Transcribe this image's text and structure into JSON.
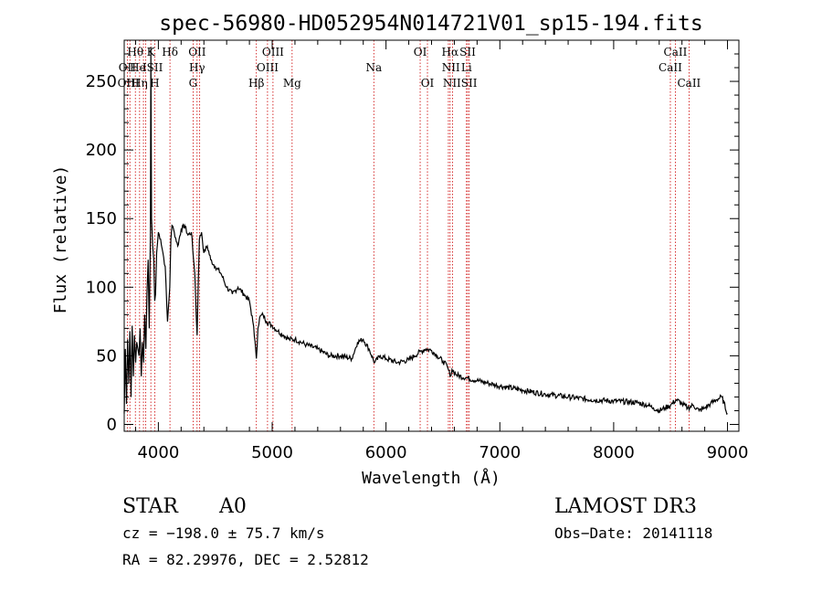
{
  "chart_data": {
    "type": "line",
    "title": "spec-56980-HD052954N014721V01_sp15-194.fits",
    "xlabel": "Wavelength (Å)",
    "ylabel": "Flux (relative)",
    "xlim": [
      3700,
      9100
    ],
    "ylim": [
      -5,
      280
    ],
    "xticks": [
      4000,
      5000,
      6000,
      7000,
      8000,
      9000
    ],
    "yticks": [
      0,
      50,
      100,
      150,
      200,
      250
    ],
    "series": [
      {
        "name": "flux",
        "x": [
          3700,
          3710,
          3720,
          3730,
          3740,
          3750,
          3760,
          3770,
          3780,
          3790,
          3800,
          3810,
          3820,
          3830,
          3840,
          3850,
          3860,
          3870,
          3880,
          3890,
          3900,
          3910,
          3920,
          3930,
          3934,
          3940,
          3950,
          3960,
          3968,
          3975,
          3985,
          4000,
          4020,
          4040,
          4060,
          4080,
          4100,
          4110,
          4120,
          4140,
          4170,
          4200,
          4230,
          4260,
          4290,
          4320,
          4340,
          4350,
          4360,
          4380,
          4400,
          4430,
          4460,
          4500,
          4550,
          4600,
          4650,
          4700,
          4750,
          4800,
          4830,
          4850,
          4861,
          4875,
          4890,
          4920,
          4950,
          5000,
          5050,
          5100,
          5150,
          5200,
          5250,
          5300,
          5400,
          5500,
          5600,
          5700,
          5750,
          5800,
          5850,
          5900,
          5950,
          6000,
          6100,
          6200,
          6250,
          6300,
          6350,
          6400,
          6450,
          6500,
          6540,
          6563,
          6580,
          6620,
          6700,
          6800,
          6900,
          7000,
          7200,
          7400,
          7600,
          7800,
          8000,
          8200,
          8300,
          8350,
          8400,
          8450,
          8500,
          8550,
          8600,
          8650,
          8700,
          8750,
          8800,
          8850,
          8900,
          8950,
          9000
        ],
        "values": [
          8,
          55,
          15,
          62,
          30,
          68,
          20,
          72,
          35,
          65,
          45,
          60,
          55,
          50,
          70,
          35,
          60,
          45,
          80,
          55,
          95,
          120,
          70,
          140,
          275,
          150,
          130,
          120,
          90,
          95,
          125,
          140,
          135,
          125,
          115,
          75,
          100,
          135,
          145,
          140,
          130,
          142,
          145,
          138,
          140,
          110,
          65,
          100,
          135,
          140,
          125,
          130,
          120,
          115,
          110,
          100,
          95,
          100,
          95,
          90,
          75,
          60,
          48,
          70,
          78,
          80,
          75,
          72,
          68,
          65,
          62,
          62,
          60,
          58,
          55,
          50,
          50,
          48,
          60,
          62,
          55,
          45,
          50,
          48,
          45,
          47,
          50,
          53,
          55,
          54,
          50,
          46,
          42,
          35,
          40,
          36,
          34,
          32,
          30,
          28,
          25,
          22,
          20,
          18,
          17,
          16,
          14,
          12,
          10,
          12,
          14,
          18,
          15,
          12,
          14,
          10,
          12,
          15,
          18,
          20,
          8
        ]
      }
    ],
    "lines": [
      {
        "name": "Hθ",
        "wl": 3798,
        "row": 0,
        "anchor": "middle"
      },
      {
        "name": "K",
        "wl": 3934,
        "row": 0,
        "anchor": "middle"
      },
      {
        "name": "Hδ",
        "wl": 4102,
        "row": 0,
        "anchor": "middle"
      },
      {
        "name": "OII",
        "wl": 4341,
        "row": 0,
        "anchor": "middle"
      },
      {
        "name": "OIII",
        "wl": 5007,
        "row": 0,
        "anchor": "middle"
      },
      {
        "name": "OI",
        "wl": 6300,
        "row": 0,
        "anchor": "middle"
      },
      {
        "name": "Hα",
        "wl": 6563,
        "row": 0,
        "anchor": "middle"
      },
      {
        "name": "SII",
        "wl": 6717,
        "row": 0,
        "anchor": "middle"
      },
      {
        "name": "CaII",
        "wl": 8542,
        "row": 0,
        "anchor": "middle"
      },
      {
        "name": "OII",
        "wl": 3727,
        "row": 1,
        "anchor": "middle"
      },
      {
        "name": "He",
        "wl": 3820,
        "row": 1,
        "anchor": "middle"
      },
      {
        "name": "ISII",
        "wl": 3950,
        "row": 1,
        "anchor": "middle"
      },
      {
        "name": "Hγ",
        "wl": 4340,
        "row": 1,
        "anchor": "middle"
      },
      {
        "name": "OIII",
        "wl": 4959,
        "row": 1,
        "anchor": "middle"
      },
      {
        "name": "Na",
        "wl": 5893,
        "row": 1,
        "anchor": "middle"
      },
      {
        "name": "NII",
        "wl": 6570,
        "row": 1,
        "anchor": "middle"
      },
      {
        "name": "Li",
        "wl": 6707,
        "row": 1,
        "anchor": "middle"
      },
      {
        "name": "CaII",
        "wl": 8498,
        "row": 1,
        "anchor": "middle"
      },
      {
        "name": "OIII",
        "wl": 3737,
        "row": 2,
        "anchor": "middle"
      },
      {
        "name": "Hη",
        "wl": 3835,
        "row": 2,
        "anchor": "middle"
      },
      {
        "name": "H",
        "wl": 3968,
        "row": 2,
        "anchor": "middle"
      },
      {
        "name": "G",
        "wl": 4305,
        "row": 2,
        "anchor": "middle"
      },
      {
        "name": "Hβ",
        "wl": 4861,
        "row": 2,
        "anchor": "middle"
      },
      {
        "name": "Mg",
        "wl": 5175,
        "row": 2,
        "anchor": "middle"
      },
      {
        "name": "OI",
        "wl": 6364,
        "row": 2,
        "anchor": "middle"
      },
      {
        "name": "NIISII",
        "wl": 6650,
        "row": 2,
        "anchor": "middle"
      },
      {
        "name": "CaII",
        "wl": 8662,
        "row": 2,
        "anchor": "middle"
      }
    ],
    "marker_wavelengths": [
      3727,
      3750,
      3798,
      3835,
      3869,
      3889,
      3934,
      3968,
      4102,
      4305,
      4340,
      4363,
      4861,
      4959,
      5007,
      5175,
      5893,
      6300,
      6364,
      6548,
      6563,
      6584,
      6707,
      6717,
      6731,
      8498,
      8542,
      8662
    ]
  },
  "info": {
    "object_class": "STAR",
    "subclass": "A0",
    "survey": "LAMOST DR3",
    "redshift": "cz = −198.0 ± 75.7 km/s",
    "obs_date": "Obs−Date: 20141118",
    "coords": "RA =  82.29976, DEC =   2.52812"
  },
  "colors": {
    "marker": "#cc0000",
    "spectrum": "#000000"
  }
}
